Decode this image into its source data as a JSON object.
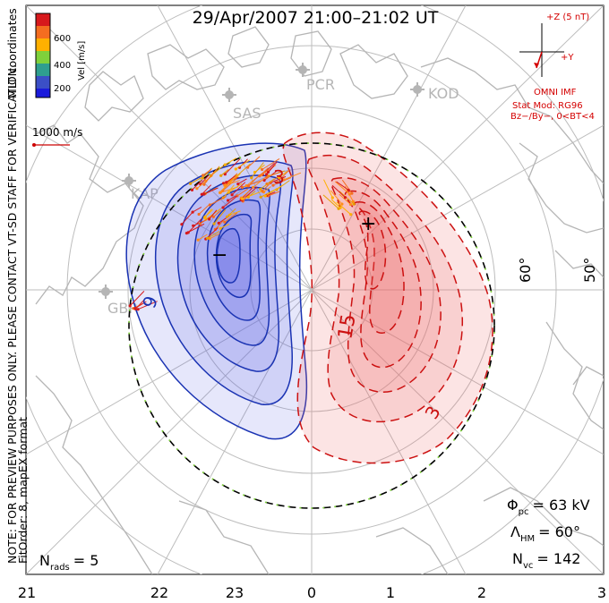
{
  "title": "29/Apr/2007 21:00–21:02 UT",
  "coordinate_label": "MLT coordinates",
  "velocity_scale": {
    "unit_label": "Vel [m/s]",
    "ticks": [
      "600",
      "400",
      "200"
    ],
    "colors": [
      "#d7191c",
      "#f46d20",
      "#ffb000",
      "#7fd13b",
      "#2f9e8f",
      "#3b4fc6",
      "#1a1adb"
    ]
  },
  "reference_vector": {
    "label": "1000 m/s",
    "color": "#cc0000"
  },
  "imf_panel": {
    "z_label": "+Z (5 nT)",
    "y_label": "+Y",
    "source_label": "OMNI IMF",
    "model_label": "Stat Mod: RG96",
    "condition_label": "Bz−/By−, 0<BT<4",
    "color": "#d40000"
  },
  "stations": [
    "PCR",
    "SAS",
    "KOD",
    "KAP",
    "GBR"
  ],
  "latitude_labels": [
    "60°",
    "50°"
  ],
  "contour_labels": {
    "negative": [
      "9"
    ],
    "positive": [
      "3",
      "15",
      "3"
    ],
    "min_marker": "−",
    "max_marker": "+"
  },
  "side_note_line1": "NOTE: FOR PREVIEW PURPOSES ONLY. PLEASE CONTACT VT-SD STAFF FOR VERIFICATION.",
  "side_note_line2": "FitOrder: 8, mapEX format",
  "stats": {
    "phi_symbol": "Φ",
    "phi_sub": "pc",
    "phi_value": "= 63 kV",
    "lambda_symbol": "Λ",
    "lambda_sub": "HM",
    "lambda_value": "= 60°",
    "nvc_symbol": "N",
    "nvc_sub": "vc",
    "nvc_value": "= 142",
    "nrads_symbol": "N",
    "nrads_sub": "rads",
    "nrads_value": "= 5"
  },
  "mlt_axis": [
    "21",
    "22",
    "23",
    "0",
    "1",
    "2",
    "3"
  ],
  "colors": {
    "negative_fill": "#5561e6",
    "negative_line": "#1a33b3",
    "positive_fill": "#ee6b6b",
    "positive_line": "#cc1111",
    "coast": "#b5b5b5",
    "grid": "#bdbdbd",
    "boundary_green": "#7fd13b"
  }
}
